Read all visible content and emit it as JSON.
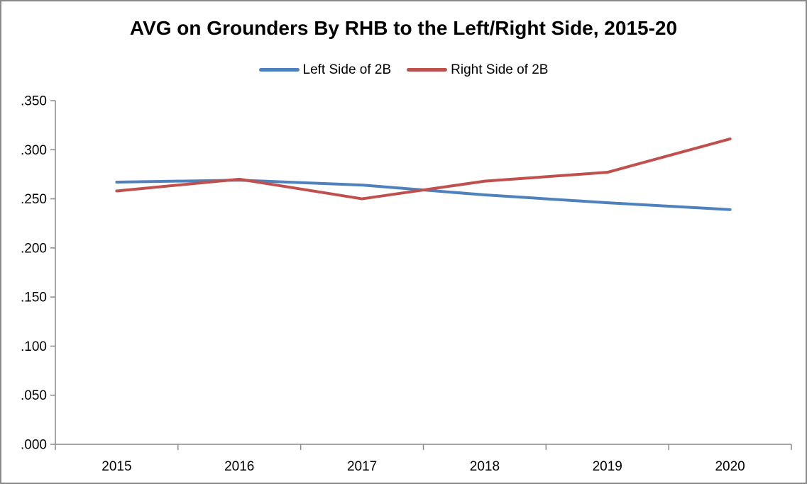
{
  "title": "AVG on Grounders By RHB to the Left/Right Side, 2015-20",
  "chart_data": {
    "type": "line",
    "title": "AVG on Grounders By RHB to the Left/Right Side, 2015-20",
    "categories": [
      "2015",
      "2016",
      "2017",
      "2018",
      "2019",
      "2020"
    ],
    "series": [
      {
        "name": "Left Side of 2B",
        "color": "#4F81BD",
        "values": [
          0.267,
          0.269,
          0.264,
          0.254,
          0.246,
          0.239
        ]
      },
      {
        "name": "Right Side of 2B",
        "color": "#C0504D",
        "values": [
          0.258,
          0.27,
          0.25,
          0.268,
          0.277,
          0.311
        ]
      }
    ],
    "xlabel": "",
    "ylabel": "",
    "ylim": [
      0,
      0.35
    ],
    "ytick_step": 0.05,
    "ytick_labels": [
      ".000",
      ".050",
      ".100",
      ".150",
      ".200",
      ".250",
      ".300",
      ".350"
    ],
    "grid": false,
    "legend_position": "top-center",
    "axis_color": "#8a8a8a",
    "tick_label_color": "#000000",
    "line_width": 4
  }
}
